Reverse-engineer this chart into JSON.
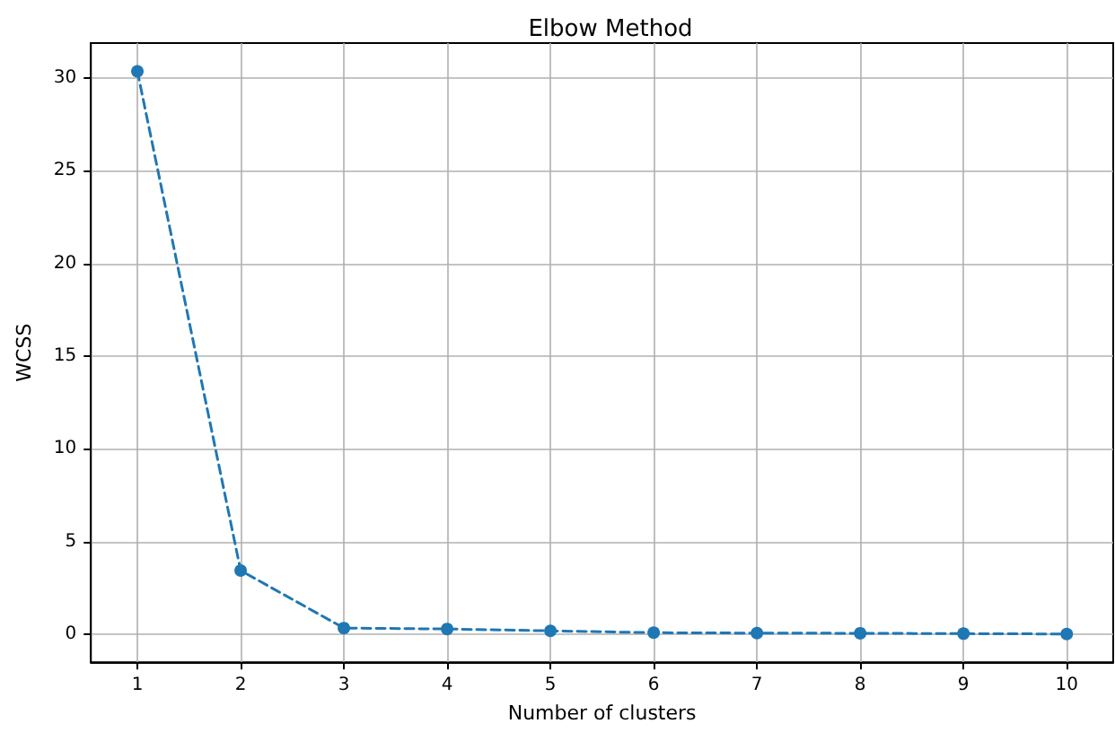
{
  "chart_data": {
    "type": "line",
    "title": "Elbow Method",
    "xlabel": "Number of clusters",
    "ylabel": "WCSS",
    "x": [
      1,
      2,
      3,
      4,
      5,
      6,
      7,
      8,
      9,
      10
    ],
    "series": [
      {
        "color": "#1f77b4",
        "values": [
          30.35,
          3.45,
          0.35,
          0.3,
          0.2,
          0.1,
          0.08,
          0.07,
          0.05,
          0.03
        ]
      }
    ],
    "xlim": [
      0.55,
      10.45
    ],
    "xticks": [
      1,
      2,
      3,
      4,
      5,
      6,
      7,
      8,
      9,
      10
    ],
    "ylim": [
      -1.49,
      31.87
    ],
    "yticks": [
      0,
      5,
      10,
      15,
      20,
      25,
      30
    ],
    "grid": true,
    "marker": "circle",
    "line_style": "dashed"
  }
}
